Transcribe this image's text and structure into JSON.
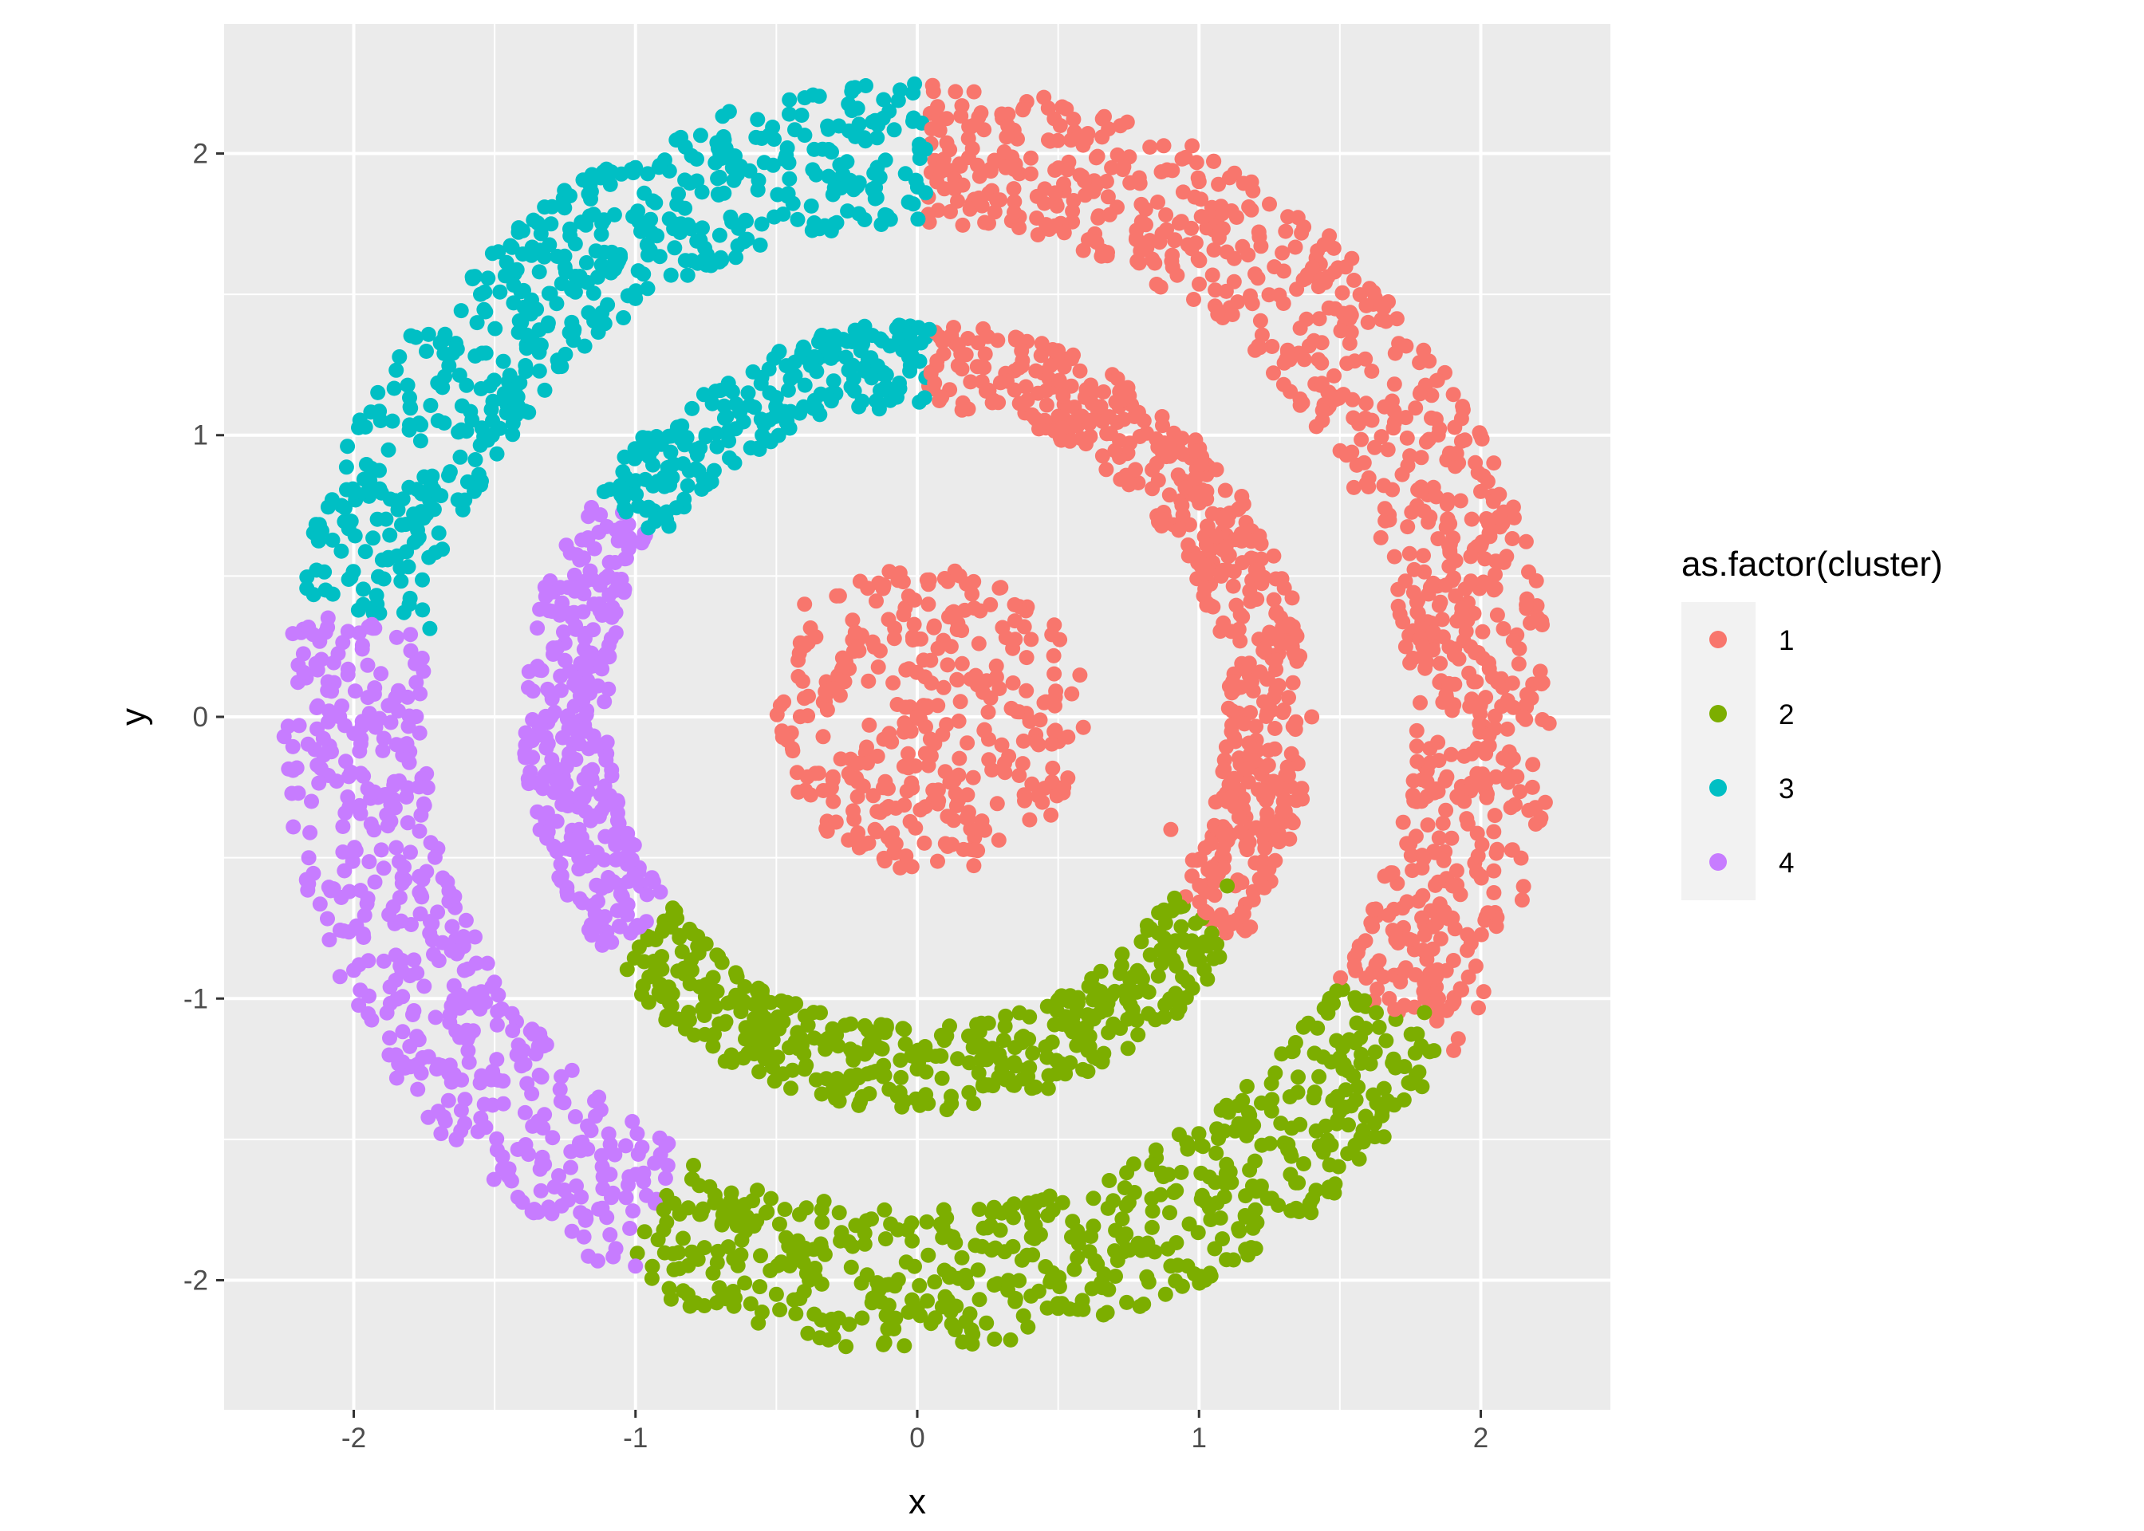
{
  "chart_data": {
    "type": "scatter",
    "title": "",
    "xlabel": "x",
    "ylabel": "y",
    "xlim": [
      -2.46,
      2.46
    ],
    "ylim": [
      -2.46,
      2.46
    ],
    "x_ticks": [
      -2,
      -1,
      0,
      1,
      2
    ],
    "y_ticks": [
      -2,
      -1,
      0,
      1,
      2
    ],
    "x_tick_labels": [
      "-2",
      "-1",
      "0",
      "1",
      "2"
    ],
    "y_tick_labels": [
      "-2",
      "-1",
      "0",
      "1",
      "2"
    ],
    "grid": true,
    "legend": {
      "title": "as.factor(cluster)",
      "position": "right",
      "entries": [
        "1",
        "2",
        "3",
        "4"
      ]
    },
    "colors": {
      "1": "#F8766D",
      "2": "#7CAE00",
      "3": "#00BFC4",
      "4": "#C77CFF",
      "panel": "#EBEBEB",
      "grid": "#FFFFFF"
    },
    "structure": [
      {
        "ring": "center-disk",
        "radius_range": [
          0,
          0.55
        ],
        "clusters": [
          "1"
        ]
      },
      {
        "ring": "middle",
        "radius_range": [
          1.1,
          1.4
        ],
        "cluster_angles_deg": {
          "1": [
            -35,
            88
          ],
          "3": [
            88,
            145
          ],
          "4": [
            145,
            218
          ],
          "2": [
            218,
            325
          ]
        }
      },
      {
        "ring": "outer",
        "radius_range": [
          1.75,
          2.25
        ],
        "cluster_angles_deg": {
          "1": [
            -32,
            89
          ],
          "3": [
            89,
            170
          ],
          "4": [
            170,
            242
          ],
          "2": [
            242,
            328
          ]
        }
      }
    ],
    "series": [
      {
        "name": "1",
        "points": [
          [
            0.0,
            0.0
          ],
          [
            0.12,
            0.25
          ],
          [
            -0.22,
            0.3
          ],
          [
            0.3,
            -0.1
          ],
          [
            -0.35,
            -0.2
          ],
          [
            0.45,
            0.05
          ],
          [
            -0.4,
            0.4
          ],
          [
            0.1,
            -0.45
          ],
          [
            -0.15,
            -0.4
          ],
          [
            0.38,
            0.32
          ],
          [
            -0.48,
            -0.05
          ],
          [
            0.2,
            0.48
          ],
          [
            0.52,
            -0.25
          ],
          [
            -0.3,
            0.1
          ],
          [
            0.05,
            0.12
          ],
          [
            0.85,
            0.9
          ],
          [
            0.5,
            1.3
          ],
          [
            1.25,
            0.3
          ],
          [
            1.3,
            -0.3
          ],
          [
            1.05,
            -0.55
          ],
          [
            1.15,
            0.65
          ],
          [
            0.25,
            1.35
          ],
          [
            1.4,
            0.0
          ],
          [
            0.9,
            -0.4
          ],
          [
            0.2,
            2.1
          ],
          [
            1.0,
            1.9
          ],
          [
            1.6,
            1.4
          ],
          [
            2.0,
            0.8
          ],
          [
            2.15,
            0.0
          ],
          [
            1.9,
            -0.6
          ],
          [
            1.85,
            -1.0
          ],
          [
            1.55,
            1.55
          ],
          [
            2.05,
            -0.35
          ],
          [
            0.6,
            2.05
          ]
        ]
      },
      {
        "name": "2",
        "points": [
          [
            0.0,
            -1.25
          ],
          [
            -0.5,
            -1.1
          ],
          [
            0.6,
            -1.1
          ],
          [
            -0.9,
            -0.75
          ],
          [
            0.95,
            -0.8
          ],
          [
            -0.3,
            -1.3
          ],
          [
            0.3,
            -1.25
          ],
          [
            1.1,
            -0.6
          ],
          [
            -0.8,
            -0.9
          ],
          [
            0.0,
            -2.1
          ],
          [
            -0.8,
            -1.9
          ],
          [
            0.9,
            -1.95
          ],
          [
            1.5,
            -1.4
          ],
          [
            1.8,
            -1.05
          ],
          [
            -0.5,
            -2.05
          ],
          [
            0.5,
            -2.1
          ],
          [
            1.2,
            -1.75
          ],
          [
            -0.9,
            -1.75
          ]
        ]
      },
      {
        "name": "3",
        "points": [
          [
            -0.2,
            1.3
          ],
          [
            -0.6,
            1.15
          ],
          [
            -0.9,
            0.85
          ],
          [
            -0.45,
            1.2
          ],
          [
            -0.75,
            1.0
          ],
          [
            -0.1,
            2.15
          ],
          [
            -0.7,
            2.0
          ],
          [
            -1.3,
            1.75
          ],
          [
            -1.8,
            1.1
          ],
          [
            -2.1,
            0.45
          ],
          [
            -1.0,
            1.95
          ],
          [
            -1.55,
            1.5
          ],
          [
            -1.95,
            0.8
          ]
        ]
      },
      {
        "name": "4",
        "points": [
          [
            -1.2,
            0.45
          ],
          [
            -1.3,
            0.0
          ],
          [
            -1.2,
            -0.4
          ],
          [
            -1.0,
            -0.75
          ],
          [
            -1.25,
            0.2
          ],
          [
            -1.1,
            -0.6
          ],
          [
            -2.1,
            0.3
          ],
          [
            -2.15,
            -0.3
          ],
          [
            -2.0,
            -0.9
          ],
          [
            -1.7,
            -1.4
          ],
          [
            -1.3,
            -1.75
          ],
          [
            -1.0,
            -1.95
          ],
          [
            -1.85,
            -1.2
          ],
          [
            -2.05,
            0.0
          ]
        ]
      }
    ]
  }
}
